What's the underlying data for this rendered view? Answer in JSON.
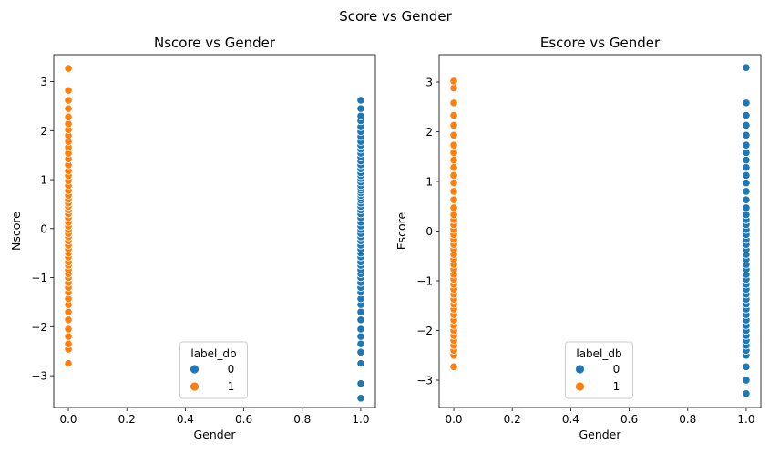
{
  "figure": {
    "suptitle": "Score vs Gender"
  },
  "chart_data": [
    {
      "type": "scatter",
      "title": "Nscore vs Gender",
      "xlabel": "Gender",
      "ylabel": "Nscore",
      "xlim": [
        -0.05,
        1.05
      ],
      "ylim": [
        -3.65,
        3.55
      ],
      "xticks": [
        0.0,
        0.2,
        0.4,
        0.6,
        0.8,
        1.0
      ],
      "xtick_labels": [
        "0.0",
        "0.2",
        "0.4",
        "0.6",
        "0.8",
        "1.0"
      ],
      "yticks": [
        -3,
        -2,
        -1,
        0,
        1,
        2,
        3
      ],
      "ytick_labels": [
        "−3",
        "−2",
        "−1",
        "0",
        "1",
        "2",
        "3"
      ],
      "grid": false,
      "legend": {
        "title": "label_db",
        "placement": "lower center",
        "entries": [
          "0",
          "1"
        ]
      },
      "series": [
        {
          "name": "0",
          "color": "#1f77b4",
          "x": 1.0,
          "y": [
            -3.46,
            -3.16,
            -2.75,
            -2.52,
            -2.35,
            -2.2,
            -2.05,
            -1.86,
            -1.7,
            -1.55,
            -1.43,
            -1.3,
            -1.2,
            -1.1,
            -1.0,
            -0.92,
            -0.84,
            -0.75,
            -0.68,
            -0.58,
            -0.5,
            -0.42,
            -0.34,
            -0.25,
            -0.17,
            -0.1,
            -0.02,
            0.05,
            0.13,
            0.22,
            0.3,
            0.38,
            0.45,
            0.52,
            0.58,
            0.63,
            0.68,
            0.73,
            0.78,
            0.83,
            0.88,
            0.95,
            1.02,
            1.08,
            1.14,
            1.22,
            1.3,
            1.38,
            1.46,
            1.54,
            1.62,
            1.7,
            1.78,
            1.88,
            1.98,
            2.08,
            2.2,
            2.3,
            2.45,
            2.62
          ]
        },
        {
          "name": "1",
          "color": "#ff7f0e",
          "x": 0.0,
          "y": [
            -2.75,
            -2.46,
            -2.35,
            -2.2,
            -2.05,
            -1.86,
            -1.7,
            -1.55,
            -1.43,
            -1.3,
            -1.2,
            -1.1,
            -1.0,
            -0.92,
            -0.84,
            -0.75,
            -0.68,
            -0.58,
            -0.5,
            -0.42,
            -0.34,
            -0.25,
            -0.17,
            -0.1,
            -0.02,
            0.05,
            0.13,
            0.22,
            0.3,
            0.38,
            0.45,
            0.52,
            0.6,
            0.68,
            0.78,
            0.88,
            0.98,
            1.08,
            1.18,
            1.3,
            1.42,
            1.54,
            1.66,
            1.78,
            1.9,
            2.02,
            2.14,
            2.28,
            2.45,
            2.62,
            2.82,
            3.27
          ]
        }
      ]
    },
    {
      "type": "scatter",
      "title": "Escore vs Gender",
      "xlabel": "Gender",
      "ylabel": "Escore",
      "xlim": [
        -0.05,
        1.05
      ],
      "ylim": [
        -3.55,
        3.55
      ],
      "xticks": [
        0.0,
        0.2,
        0.4,
        0.6,
        0.8,
        1.0
      ],
      "xtick_labels": [
        "0.0",
        "0.2",
        "0.4",
        "0.6",
        "0.8",
        "1.0"
      ],
      "yticks": [
        -3,
        -2,
        -1,
        0,
        1,
        2,
        3
      ],
      "ytick_labels": [
        "−3",
        "−2",
        "−1",
        "0",
        "1",
        "2",
        "3"
      ],
      "grid": false,
      "legend": {
        "title": "label_db",
        "placement": "lower center",
        "entries": [
          "0",
          "1"
        ]
      },
      "series": [
        {
          "name": "0",
          "color": "#1f77b4",
          "x": 1.0,
          "y": [
            -3.27,
            -3.0,
            -2.73,
            -2.5,
            -2.4,
            -2.3,
            -2.2,
            -2.1,
            -2.0,
            -1.9,
            -1.79,
            -1.68,
            -1.57,
            -1.47,
            -1.37,
            -1.27,
            -1.17,
            -1.07,
            -0.97,
            -0.87,
            -0.77,
            -0.67,
            -0.57,
            -0.47,
            -0.37,
            -0.27,
            -0.17,
            -0.07,
            0.03,
            0.13,
            0.23,
            0.33,
            0.47,
            0.63,
            0.8,
            0.97,
            1.12,
            1.28,
            1.43,
            1.58,
            1.73,
            1.93,
            2.13,
            2.33,
            2.58,
            3.29
          ]
        },
        {
          "name": "1",
          "color": "#ff7f0e",
          "x": 0.0,
          "y": [
            -2.73,
            -2.5,
            -2.4,
            -2.3,
            -2.2,
            -2.1,
            -2.0,
            -1.9,
            -1.79,
            -1.68,
            -1.57,
            -1.47,
            -1.37,
            -1.27,
            -1.17,
            -1.07,
            -0.97,
            -0.87,
            -0.77,
            -0.67,
            -0.57,
            -0.47,
            -0.37,
            -0.27,
            -0.17,
            -0.07,
            0.03,
            0.13,
            0.23,
            0.33,
            0.47,
            0.63,
            0.8,
            0.97,
            1.12,
            1.28,
            1.43,
            1.58,
            1.73,
            1.93,
            2.13,
            2.33,
            2.58,
            2.88,
            3.02
          ]
        }
      ]
    }
  ]
}
